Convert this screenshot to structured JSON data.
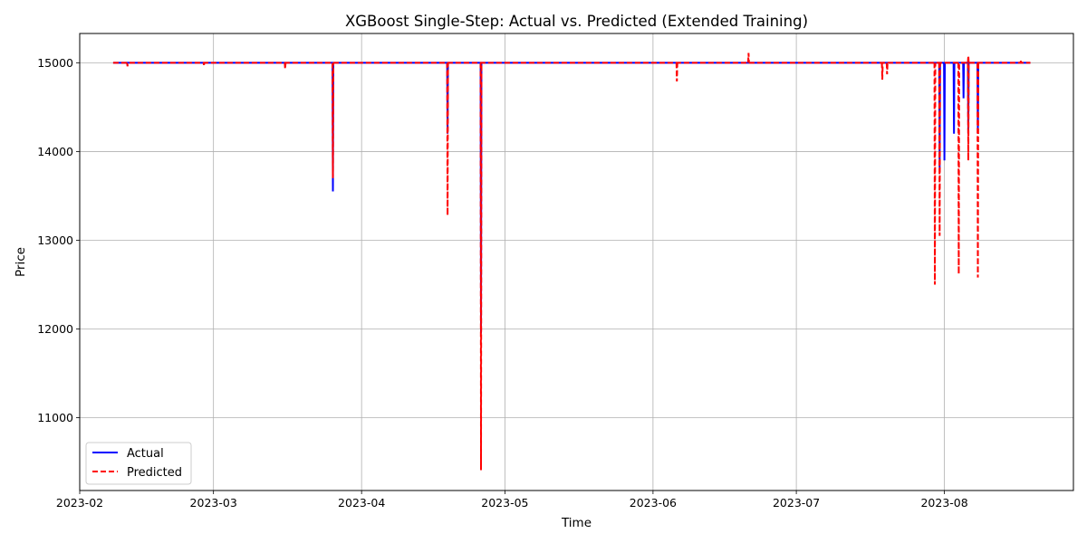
{
  "chart_data": {
    "type": "line",
    "title": "XGBoost Single-Step: Actual vs. Predicted (Extended Training)",
    "xlabel": "Time",
    "ylabel": "Price",
    "xlim": [
      "2023-02-01",
      "2023-08-28"
    ],
    "ylim": [
      10180,
      15330
    ],
    "x_ticks": [
      "2023-02",
      "2023-03",
      "2023-04",
      "2023-05",
      "2023-06",
      "2023-07",
      "2023-08"
    ],
    "y_ticks": [
      11000,
      12000,
      13000,
      14000,
      15000
    ],
    "grid": true,
    "legend_position": "lower-left",
    "series": [
      {
        "name": "Actual",
        "color": "#0000ff",
        "style": "solid",
        "baseline": 15000,
        "x_range": [
          "2023-02-08",
          "2023-08-19"
        ],
        "spikes": [
          {
            "x": "2023-03-26",
            "min": 13550
          },
          {
            "x": "2023-04-19",
            "min": 14200
          },
          {
            "x": "2023-04-26",
            "min": 11950
          },
          {
            "x": "2023-07-31",
            "min": 13800
          },
          {
            "x": "2023-08-01",
            "min": 13900
          },
          {
            "x": "2023-08-03",
            "min": 14200
          },
          {
            "x": "2023-08-05",
            "min": 14600
          },
          {
            "x": "2023-08-06",
            "min": 14200
          },
          {
            "x": "2023-08-08",
            "min": 14200
          }
        ]
      },
      {
        "name": "Predicted",
        "color": "#ff0000",
        "style": "dashed",
        "baseline": 15000,
        "x_range": [
          "2023-02-08",
          "2023-08-19"
        ],
        "spikes": [
          {
            "x": "2023-02-11",
            "min": 14960
          },
          {
            "x": "2023-02-27",
            "min": 14975
          },
          {
            "x": "2023-03-16",
            "min": 14930
          },
          {
            "x": "2023-03-26",
            "min": 13700
          },
          {
            "x": "2023-04-19",
            "min": 13280
          },
          {
            "x": "2023-04-26",
            "min": 10410
          },
          {
            "x": "2023-06-06",
            "min": 14790
          },
          {
            "x": "2023-06-21",
            "max": 15110
          },
          {
            "x": "2023-07-19",
            "min": 14810
          },
          {
            "x": "2023-07-20",
            "min": 14870
          },
          {
            "x": "2023-07-30",
            "min": 12500
          },
          {
            "x": "2023-07-31",
            "min": 13050
          },
          {
            "x": "2023-08-04",
            "min": 12620
          },
          {
            "x": "2023-08-06",
            "min": 13900
          },
          {
            "x": "2023-08-06",
            "max": 15080
          },
          {
            "x": "2023-08-08",
            "min": 12580
          },
          {
            "x": "2023-08-17",
            "max": 15020
          }
        ]
      }
    ]
  }
}
